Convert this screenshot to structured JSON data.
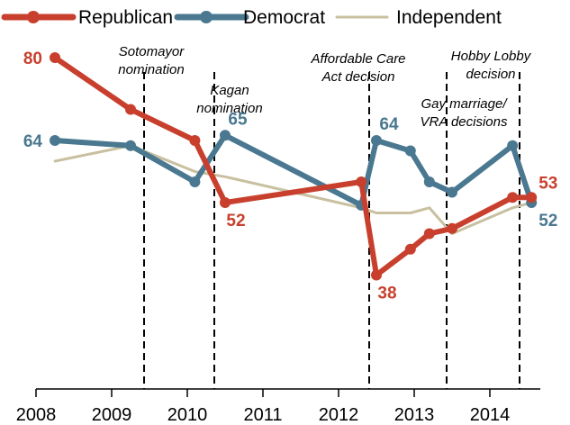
{
  "chart_data": {
    "type": "line",
    "title": "",
    "xlabel": "",
    "ylabel": "",
    "xlim": [
      2008,
      2014.75
    ],
    "ylim": [
      0,
      90
    ],
    "grid": false,
    "legend_position": "top",
    "x_ticks": [
      {
        "label": "2008",
        "value": 2008
      },
      {
        "label": "2009",
        "value": 2009
      },
      {
        "label": "2010",
        "value": 2010
      },
      {
        "label": "2011",
        "value": 2011
      },
      {
        "label": "2012",
        "value": 2012
      },
      {
        "label": "2013",
        "value": 2013
      },
      {
        "label": "2014",
        "value": 2014
      }
    ],
    "series": [
      {
        "name": "Republican",
        "color": "#c8402d",
        "markers": true,
        "points": [
          {
            "x": 2008.25,
            "y": 80
          },
          {
            "x": 2009.25,
            "y": 70
          },
          {
            "x": 2010.1,
            "y": 64
          },
          {
            "x": 2010.5,
            "y": 52
          },
          {
            "x": 2012.3,
            "y": 56
          },
          {
            "x": 2012.5,
            "y": 38
          },
          {
            "x": 2012.95,
            "y": 43
          },
          {
            "x": 2013.2,
            "y": 46
          },
          {
            "x": 2013.5,
            "y": 47
          },
          {
            "x": 2014.3,
            "y": 53
          },
          {
            "x": 2014.55,
            "y": 53
          }
        ]
      },
      {
        "name": "Democrat",
        "color": "#4a7890",
        "markers": true,
        "points": [
          {
            "x": 2008.25,
            "y": 64
          },
          {
            "x": 2009.25,
            "y": 63
          },
          {
            "x": 2010.1,
            "y": 56
          },
          {
            "x": 2010.5,
            "y": 65
          },
          {
            "x": 2012.3,
            "y": 51.5
          },
          {
            "x": 2012.5,
            "y": 64
          },
          {
            "x": 2012.95,
            "y": 62
          },
          {
            "x": 2013.2,
            "y": 56
          },
          {
            "x": 2013.5,
            "y": 54
          },
          {
            "x": 2014.3,
            "y": 63
          },
          {
            "x": 2014.55,
            "y": 52
          }
        ]
      },
      {
        "name": "Independent",
        "color": "#c8c0a0",
        "markers": false,
        "points": [
          {
            "x": 2008.25,
            "y": 60
          },
          {
            "x": 2009.25,
            "y": 63
          },
          {
            "x": 2010.1,
            "y": 58
          },
          {
            "x": 2010.5,
            "y": 57
          },
          {
            "x": 2012.3,
            "y": 51
          },
          {
            "x": 2012.5,
            "y": 50
          },
          {
            "x": 2012.95,
            "y": 50
          },
          {
            "x": 2013.2,
            "y": 51
          },
          {
            "x": 2013.5,
            "y": 46
          },
          {
            "x": 2014.3,
            "y": 51
          },
          {
            "x": 2014.55,
            "y": 52
          }
        ]
      }
    ],
    "data_labels": [
      {
        "text": "80",
        "series": "Republican",
        "x": 2008.25,
        "y": 80,
        "anchor": "left"
      },
      {
        "text": "64",
        "series": "Democrat",
        "x": 2008.25,
        "y": 64,
        "anchor": "left"
      },
      {
        "text": "52",
        "series": "Republican",
        "x": 2010.5,
        "y": 52,
        "anchor": "below"
      },
      {
        "text": "65",
        "series": "Democrat",
        "x": 2010.5,
        "y": 65,
        "anchor": "above"
      },
      {
        "text": "64",
        "series": "Democrat",
        "x": 2012.5,
        "y": 64,
        "anchor": "above"
      },
      {
        "text": "38",
        "series": "Republican",
        "x": 2012.5,
        "y": 38,
        "anchor": "below"
      },
      {
        "text": "53",
        "series": "Republican",
        "x": 2014.55,
        "y": 53,
        "anchor": "right-up"
      },
      {
        "text": "52",
        "series": "Democrat",
        "x": 2014.55,
        "y": 52,
        "anchor": "right-down"
      }
    ],
    "event_lines": [
      {
        "x": 2009.45,
        "lines": [
          "Sotomayor",
          "nomination"
        ]
      },
      {
        "x": 2010.38,
        "lines": [
          "Kagan",
          "nomination"
        ]
      },
      {
        "x": 2012.42,
        "lines": [
          "Affordable Care",
          "Act decision"
        ]
      },
      {
        "x": 2013.45,
        "lines": [
          "Gay marriage/",
          "VRA decisions"
        ]
      },
      {
        "x": 2014.42,
        "lines": [
          "Hobby Lobby",
          "decision"
        ]
      }
    ]
  }
}
